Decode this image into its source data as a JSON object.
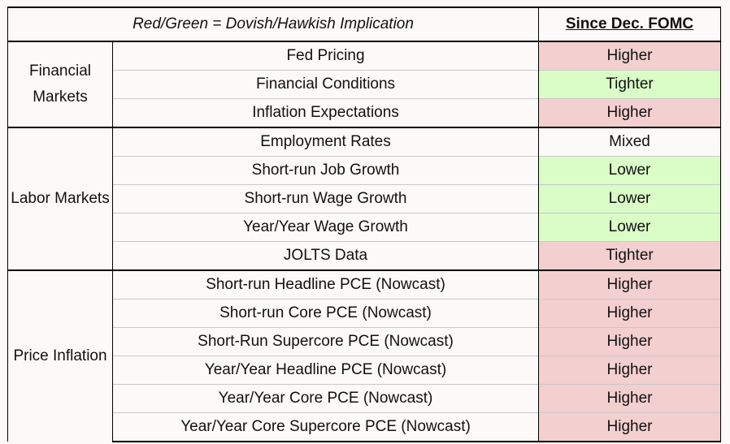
{
  "header": {
    "title": "Red/Green = Dovish/Hawkish Implication",
    "column": "Since Dec. FOMC"
  },
  "groups": [
    {
      "label": "Financial Markets",
      "rows": [
        {
          "indicator": "Fed Pricing",
          "change": "Higher",
          "fill": "#f3cfcf"
        },
        {
          "indicator": "Financial Conditions",
          "change": "Tighter",
          "fill": "#dafcc6"
        },
        {
          "indicator": "Inflation Expectations",
          "change": "Higher",
          "fill": "#f3cfcf"
        }
      ]
    },
    {
      "label": "Labor Markets",
      "rows": [
        {
          "indicator": "Employment Rates",
          "change": "Mixed",
          "fill": "#fbfaf8"
        },
        {
          "indicator": "Short-run Job Growth",
          "change": "Lower",
          "fill": "#dafcc6"
        },
        {
          "indicator": "Short-run Wage Growth",
          "change": "Lower",
          "fill": "#dafcc6"
        },
        {
          "indicator": "Year/Year Wage Growth",
          "change": "Lower",
          "fill": "#dafcc6"
        },
        {
          "indicator": "JOLTS Data",
          "change": "Tighter",
          "fill": "#f3cfcf"
        }
      ]
    },
    {
      "label": "Price Inflation",
      "rows": [
        {
          "indicator": "Short-run Headline PCE (Nowcast)",
          "change": "Higher",
          "fill": "#f3cfcf"
        },
        {
          "indicator": "Short-run Core PCE (Nowcast)",
          "change": "Higher",
          "fill": "#f3cfcf"
        },
        {
          "indicator": "Short-Run Supercore PCE (Nowcast)",
          "change": "Higher",
          "fill": "#f3cfcf"
        },
        {
          "indicator": "Year/Year Headline PCE (Nowcast)",
          "change": "Higher",
          "fill": "#f3cfcf"
        },
        {
          "indicator": "Year/Year Core PCE (Nowcast)",
          "change": "Higher",
          "fill": "#f3cfcf"
        },
        {
          "indicator": "Year/Year Core Supercore PCE (Nowcast)",
          "change": "Higher",
          "fill": "#f3cfcf"
        }
      ]
    }
  ]
}
